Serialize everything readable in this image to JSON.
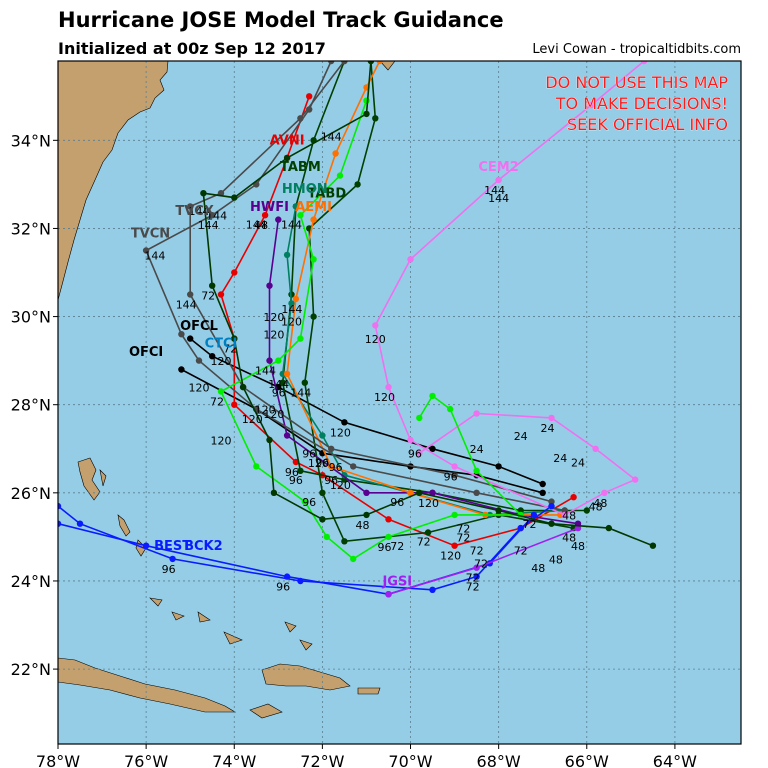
{
  "title": "Hurricane JOSE Model Track Guidance",
  "subtitle": "Initialized at 00z Sep 12 2017",
  "credit": "Levi Cowan - tropicaltidbits.com",
  "warning": [
    "DO NOT USE THIS MAP",
    "TO MAKE DECISIONS!",
    "SEEK OFFICIAL INFO"
  ],
  "colors": {
    "ocean": "#95cde6",
    "land": "#c3a06e",
    "warning": "#ff1a1a"
  },
  "axes": {
    "lon_ticks": [
      "78°W",
      "76°W",
      "74°W",
      "72°W",
      "70°W",
      "68°W",
      "66°W",
      "64°W"
    ],
    "lat_ticks": [
      "22°N",
      "24°N",
      "26°N",
      "28°N",
      "30°N",
      "32°N",
      "34°N"
    ],
    "lon_range": [
      -78,
      -62.5
    ],
    "lat_range": [
      20.3,
      35.8
    ],
    "grid": true
  },
  "models": [
    {
      "name": "OFCL",
      "color": "#000000",
      "hours": [
        "120"
      ],
      "points": [
        [
          -67,
          26.2
        ],
        [
          -68,
          26.6
        ],
        [
          -69.5,
          27
        ],
        [
          -71.5,
          27.6
        ],
        [
          -73,
          28.4
        ],
        [
          -74.5,
          29.1
        ],
        [
          -75,
          29.5
        ]
      ]
    },
    {
      "name": "OFCI",
      "color": "#000000",
      "hours": [
        "120"
      ],
      "points": [
        [
          -67,
          26
        ],
        [
          -68.5,
          26.4
        ],
        [
          -70,
          26.6
        ],
        [
          -72,
          26.9
        ],
        [
          -73.5,
          27.9
        ],
        [
          -75.2,
          28.8
        ]
      ]
    },
    {
      "name": "AVNI",
      "color": "#e80000",
      "hours": [
        "120",
        "96",
        "72",
        "48"
      ],
      "points": [
        [
          -66.3,
          25.9
        ],
        [
          -67.5,
          25.2
        ],
        [
          -69,
          24.8
        ],
        [
          -70.5,
          25.4
        ],
        [
          -72,
          26.4
        ],
        [
          -72.6,
          26.7
        ],
        [
          -74,
          28
        ],
        [
          -74,
          29.5
        ],
        [
          -74.3,
          30.5
        ],
        [
          -74,
          31
        ],
        [
          -73.3,
          32.3
        ],
        [
          -72.8,
          33.6
        ],
        [
          -72.3,
          35
        ]
      ]
    },
    {
      "name": "TABM",
      "color": "#004000",
      "hours": [
        "96"
      ],
      "points": [
        [
          -66,
          25.6
        ],
        [
          -67.5,
          25.6
        ],
        [
          -69.5,
          26
        ],
        [
          -71.5,
          26.3
        ],
        [
          -72.5,
          26.5
        ],
        [
          -72.9,
          28.5
        ],
        [
          -72.7,
          30.5
        ],
        [
          -72.6,
          32.5
        ],
        [
          -72.2,
          34
        ],
        [
          -71.5,
          35.8
        ]
      ]
    },
    {
      "name": "TABD",
      "color": "#004000",
      "hours": [
        "144"
      ],
      "points": [
        [
          -66.3,
          25.2
        ],
        [
          -68,
          25.5
        ],
        [
          -69.6,
          25.1
        ],
        [
          -71.5,
          24.9
        ],
        [
          -72,
          26
        ],
        [
          -72.4,
          28.5
        ],
        [
          -72.2,
          30
        ],
        [
          -72.3,
          32
        ],
        [
          -71.2,
          33
        ],
        [
          -70.8,
          34.5
        ],
        [
          -70.9,
          35.8
        ]
      ]
    },
    {
      "name": "HMON",
      "color": "#008060",
      "hours": [
        "120",
        "144"
      ],
      "points": [
        [
          -66.5,
          25.6
        ],
        [
          -68.2,
          25.5
        ],
        [
          -70,
          26
        ],
        [
          -71.5,
          26.4
        ],
        [
          -72,
          27.3
        ],
        [
          -72.9,
          28.7
        ],
        [
          -72.7,
          30.3
        ],
        [
          -72.8,
          31.4
        ],
        [
          -72.6,
          32.5
        ]
      ]
    },
    {
      "name": "HWFI",
      "color": "#5a0090",
      "hours": [
        "120",
        "144"
      ],
      "points": [
        [
          -66.2,
          25.3
        ],
        [
          -67.5,
          25.5
        ],
        [
          -69.5,
          26
        ],
        [
          -71,
          26
        ],
        [
          -72.8,
          27.3
        ],
        [
          -73.2,
          29
        ],
        [
          -73.2,
          30.7
        ],
        [
          -73,
          32.2
        ]
      ]
    },
    {
      "name": "AEMI",
      "color": "#ff7000",
      "hours": [
        "144"
      ],
      "points": [
        [
          -66.6,
          25.5
        ],
        [
          -68.3,
          25.5
        ],
        [
          -70,
          26
        ],
        [
          -71.8,
          26.6
        ],
        [
          -72.8,
          28.7
        ],
        [
          -72.6,
          30.4
        ],
        [
          -72.2,
          32.2
        ],
        [
          -71.7,
          33.7
        ],
        [
          -71,
          35.2
        ],
        [
          -70.7,
          35.8
        ]
      ]
    },
    {
      "name": "TVCN",
      "color": "#4a4a4a",
      "hours": [
        "120",
        "144"
      ],
      "points": [
        [
          -66.5,
          25.6
        ],
        [
          -68.5,
          26
        ],
        [
          -71.3,
          26.6
        ],
        [
          -73.5,
          27.9
        ],
        [
          -74.8,
          29
        ],
        [
          -75.2,
          29.6
        ],
        [
          -76,
          31.5
        ],
        [
          -74.5,
          32.3
        ],
        [
          -73.5,
          33
        ],
        [
          -72.3,
          34.7
        ],
        [
          -71.8,
          35.8
        ]
      ]
    },
    {
      "name": "TVCX",
      "color": "#4a4a4a",
      "hours": [
        "144"
      ],
      "points": [
        [
          -66.8,
          25.8
        ],
        [
          -69,
          26.4
        ],
        [
          -71.8,
          27
        ],
        [
          -73.8,
          28.4
        ],
        [
          -75,
          30.5
        ],
        [
          -75,
          32.5
        ],
        [
          -74.3,
          32.8
        ],
        [
          -72.5,
          34.5
        ],
        [
          -71.5,
          35.8
        ]
      ]
    },
    {
      "name": "CEM2",
      "color": "#f070f0",
      "hours": [
        "24",
        "48",
        "96",
        "120",
        "144"
      ],
      "points": [
        [
          -69.8,
          26.9
        ],
        [
          -68.5,
          27.8
        ],
        [
          -66.8,
          27.7
        ],
        [
          -65.8,
          27
        ],
        [
          -64.9,
          26.3
        ],
        [
          -65.6,
          26
        ],
        [
          -66.5,
          25.5
        ],
        [
          -69,
          26.6
        ],
        [
          -70,
          27.2
        ],
        [
          -70.5,
          28.4
        ],
        [
          -70.8,
          29.8
        ],
        [
          -70,
          31.3
        ],
        [
          -68,
          33.1
        ],
        [
          -65.9,
          34.8
        ],
        [
          -64.7,
          35.8
        ]
      ]
    },
    {
      "name": "BEST",
      "color": "#0a1cff",
      "hours": [
        "72",
        "96"
      ],
      "points": [
        [
          -66.8,
          25.7
        ],
        [
          -67.5,
          25.2
        ],
        [
          -68.5,
          24.1
        ],
        [
          -69.5,
          23.8
        ],
        [
          -72.5,
          24
        ],
        [
          -75.4,
          24.5
        ],
        [
          -77.5,
          25.3
        ],
        [
          -78,
          25.7
        ]
      ]
    },
    {
      "name": "BCK2",
      "color": "#0a1cff",
      "hours": [
        "96"
      ],
      "points": [
        [
          -67.2,
          25.5
        ],
        [
          -68.2,
          24.4
        ],
        [
          -70.5,
          23.7
        ],
        [
          -72.8,
          24.1
        ],
        [
          -76,
          24.8
        ],
        [
          -78,
          25.3
        ]
      ]
    },
    {
      "name": "JGSI",
      "color": "#a020f0",
      "hours": [
        "72"
      ],
      "points": [
        [
          -66.2,
          25.2
        ],
        [
          -68.5,
          24.3
        ],
        [
          -70.5,
          23.7
        ]
      ]
    },
    {
      "name": "NVGI",
      "color": "#00ef00",
      "hours": [
        "96",
        "72"
      ],
      "points": [
        [
          -69.8,
          27.7
        ],
        [
          -69.5,
          28.2
        ],
        [
          -69.1,
          27.9
        ],
        [
          -68.5,
          26.5
        ],
        [
          -67.5,
          25.5
        ],
        [
          -69,
          25.5
        ],
        [
          -70.5,
          25
        ],
        [
          -71.3,
          24.5
        ],
        [
          -71.9,
          25
        ],
        [
          -72.4,
          25.8
        ],
        [
          -73.5,
          26.6
        ],
        [
          -74.3,
          28.3
        ],
        [
          -73,
          29
        ],
        [
          -72.5,
          29.5
        ],
        [
          -72.2,
          31.3
        ],
        [
          -72.5,
          32.3
        ],
        [
          -71.6,
          33.2
        ],
        [
          -71,
          34.9
        ]
      ]
    },
    {
      "name": "NVG2",
      "color": "#003800",
      "hours": [
        "48",
        "72"
      ],
      "points": [
        [
          -64.5,
          24.8
        ],
        [
          -65.5,
          25.2
        ],
        [
          -66.8,
          25.3
        ],
        [
          -68,
          25.6
        ],
        [
          -69.8,
          26
        ],
        [
          -71,
          25.5
        ],
        [
          -72,
          25.4
        ],
        [
          -73.1,
          26
        ],
        [
          -73.2,
          27.2
        ],
        [
          -73.8,
          28.4
        ],
        [
          -74,
          29.5
        ],
        [
          -74.5,
          30.7
        ],
        [
          -74.7,
          32.8
        ],
        [
          -74,
          32.7
        ],
        [
          -72.8,
          33.6
        ],
        [
          -71,
          34.6
        ],
        [
          -70.9,
          35.8
        ]
      ]
    }
  ],
  "model_labels": [
    {
      "text": "OFCL",
      "color": "#000000"
    },
    {
      "text": "OFCI",
      "color": "#000000"
    },
    {
      "text": "AVNI",
      "color": "#e80000"
    },
    {
      "text": "TABM",
      "color": "#004000"
    },
    {
      "text": "TABD",
      "color": "#004000"
    },
    {
      "text": "HMON",
      "color": "#008060"
    },
    {
      "text": "HWFI",
      "color": "#5a0090"
    },
    {
      "text": "AEMI",
      "color": "#ff7000"
    },
    {
      "text": "TVCX",
      "color": "#4a4a4a"
    },
    {
      "text": "TVCN",
      "color": "#4a4a4a"
    },
    {
      "text": "CEM2",
      "color": "#f070f0"
    },
    {
      "text": "CTCI",
      "color": "#0080c0"
    },
    {
      "text": "BCK2",
      "color": "#0a1cff"
    },
    {
      "text": "BEST",
      "color": "#0a1cff"
    },
    {
      "text": "JGSI",
      "color": "#a020f0"
    }
  ],
  "hour_labels": [
    "144",
    "144",
    "144",
    "144",
    "144",
    "144",
    "144",
    "120",
    "120",
    "120",
    "120",
    "120",
    "120",
    "120",
    "120",
    "120",
    "96",
    "96",
    "96",
    "96",
    "96",
    "96",
    "96",
    "96",
    "72",
    "72",
    "72",
    "72",
    "72",
    "72",
    "72",
    "72",
    "48",
    "48",
    "48",
    "48",
    "48",
    "48",
    "24",
    "24",
    "24",
    "24"
  ]
}
